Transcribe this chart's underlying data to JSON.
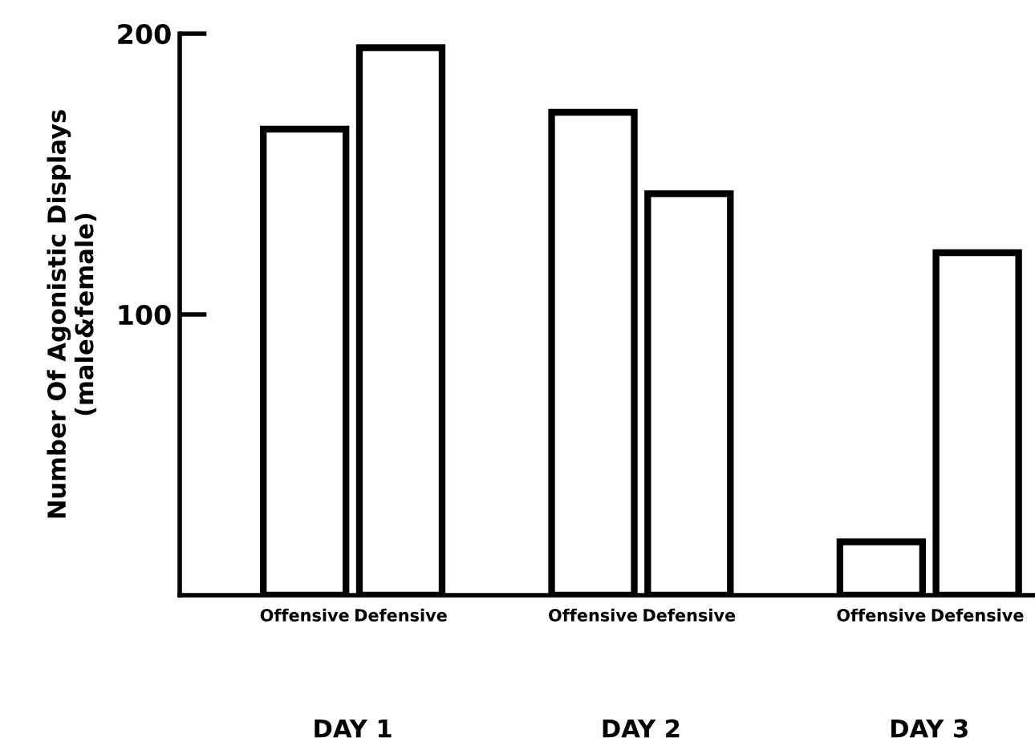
{
  "chart_data": {
    "type": "bar",
    "ylabel": "Number Of Agonistic Displays\n(male&female)",
    "categories": [
      "Offensive",
      "Defensive",
      null,
      "Offensive",
      "Defensive",
      null,
      "Offensive",
      "Defensive"
    ],
    "values": [
      166,
      195,
      null,
      172,
      143,
      null,
      19,
      122
    ],
    "color": "#ffffff",
    "ylim": [
      0,
      200
    ],
    "yticks": [
      100,
      200
    ],
    "grid": false,
    "annotations": [
      "DAY 1",
      "DAY 2",
      "DAY 3"
    ]
  }
}
